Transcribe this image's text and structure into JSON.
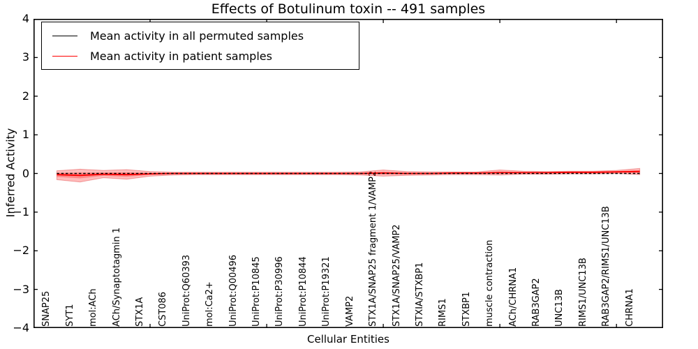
{
  "figure": {
    "background": "#ffffff"
  },
  "chart_data": {
    "type": "line",
    "title": "Effects of Botulinum toxin -- 491 samples",
    "xlabel": "Cellular Entities",
    "ylabel": "Inferred Activity",
    "ylim": [
      -4,
      4
    ],
    "ytick_values": [
      4,
      3,
      2,
      1,
      0,
      -1,
      -2,
      -3,
      -4
    ],
    "ytick_labels": [
      "4",
      "3",
      "2",
      "1",
      "0",
      "−1",
      "−2",
      "−3",
      "−4"
    ],
    "x_axis_range": [
      0,
      27
    ],
    "x_major_tick_positions": [
      0,
      5,
      10,
      15,
      20,
      25
    ],
    "grid": false,
    "legend_position": "upper left",
    "categories": [
      "SNAP25",
      "SYT1",
      "mol:ACh",
      "ACh/Synaptotagmin 1",
      "STX1A",
      "CST086",
      "UniProt:Q60393",
      "mol:Ca2+",
      "UniProt:Q00496",
      "UniProt:P10845",
      "UniProt:P30996",
      "UniProt:P10844",
      "UniProt:P19321",
      "VAMP2",
      "STX1A/SNAP25 fragment 1/VAMP2",
      "STX1A/SNAP25/VAMP2",
      "STXIA/STXBP1",
      "RIMS1",
      "STXBP1",
      "muscle contraction",
      "ACh/CHRNA1",
      "RAB3GAP2",
      "UNC13B",
      "RIMS1/UNC13B",
      "RAB3GAP2/RIMS1/UNC13B",
      "CHRNA1"
    ],
    "series": [
      {
        "name": "Mean activity in all permuted samples",
        "color": "#000000",
        "style": "dashed",
        "values": [
          0,
          0,
          0,
          0,
          0,
          0,
          0,
          0,
          0,
          0,
          0,
          0,
          0,
          0,
          0,
          0,
          0,
          0,
          0,
          0,
          0,
          0,
          0,
          0,
          0,
          0
        ]
      },
      {
        "name": "Mean activity in patient samples",
        "color": "#ff0000",
        "style": "solid",
        "values": [
          -0.03,
          -0.05,
          -0.02,
          -0.03,
          -0.01,
          0.0,
          0.0,
          0.0,
          0.0,
          0.0,
          0.0,
          0.0,
          0.0,
          0.0,
          0.01,
          0.0,
          0.0,
          0.01,
          0.01,
          0.02,
          0.02,
          0.02,
          0.03,
          0.03,
          0.04,
          0.05
        ]
      }
    ],
    "band": {
      "name": "patient activity spread",
      "color": "#ff0000",
      "outer_alpha": 0.32,
      "inner_alpha": 0.3,
      "inner_band_fraction": 0.45,
      "upper": [
        0.07,
        0.11,
        0.08,
        0.1,
        0.05,
        0.03,
        0.03,
        0.03,
        0.03,
        0.03,
        0.03,
        0.03,
        0.03,
        0.04,
        0.09,
        0.05,
        0.04,
        0.04,
        0.04,
        0.09,
        0.06,
        0.05,
        0.06,
        0.06,
        0.08,
        0.13
      ],
      "lower": [
        -0.16,
        -0.22,
        -0.11,
        -0.15,
        -0.07,
        -0.04,
        -0.03,
        -0.03,
        -0.03,
        -0.03,
        -0.03,
        -0.03,
        -0.03,
        -0.04,
        -0.07,
        -0.05,
        -0.04,
        -0.03,
        -0.03,
        -0.04,
        -0.02,
        -0.02,
        -0.01,
        -0.01,
        0.0,
        -0.03
      ]
    },
    "legend": {
      "entries": [
        {
          "label": "Mean activity in all permuted samples",
          "color": "#000000"
        },
        {
          "label": "Mean activity in patient samples",
          "color": "#ff0000"
        }
      ]
    }
  }
}
